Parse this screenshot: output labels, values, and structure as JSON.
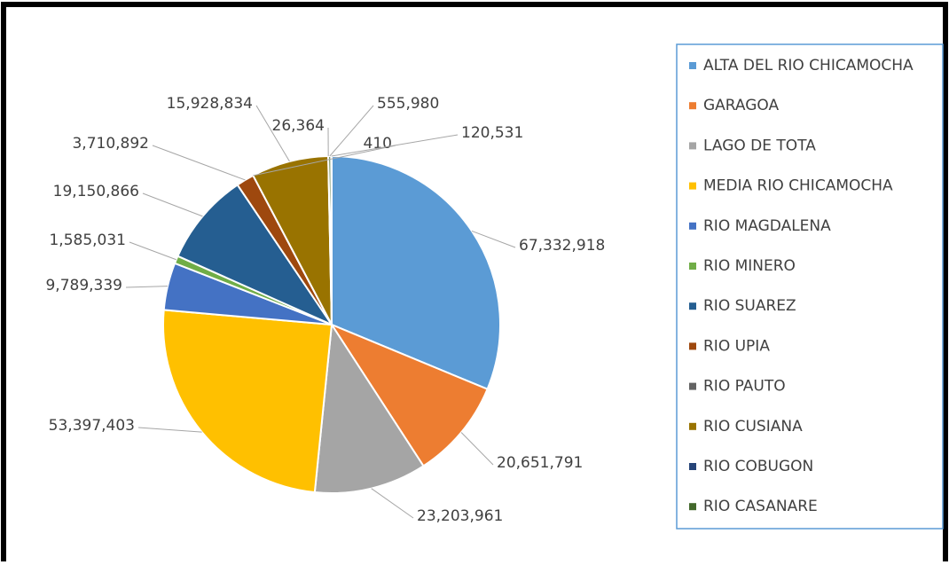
{
  "chart_data": {
    "type": "pie",
    "categories": [
      "ALTA DEL RIO CHICAMOCHA",
      "GARAGOA",
      "LAGO DE TOTA",
      "MEDIA RIO CHICAMOCHA",
      "RIO MAGDALENA",
      "RIO MINERO",
      "RIO SUAREZ",
      "RIO UPIA",
      "RIO PAUTO",
      "RIO CUSIANA",
      "RIO COBUGON",
      "RIO CASANARE",
      null
    ],
    "values": [
      67332918,
      20651791,
      23203961,
      53397403,
      9789339,
      1585031,
      19150866,
      3710892,
      410,
      15928834,
      26364,
      555980,
      120531
    ],
    "value_labels": [
      "67,332,918",
      "20,651,791",
      "23,203,961",
      "53,397,403",
      "9,789,339",
      "1,585,031",
      "19,150,866",
      "3,710,892",
      "410",
      "15,928,834",
      "26,364",
      "555,980",
      "120,531"
    ],
    "colors": [
      "#5b9bd5",
      "#ed7d31",
      "#a5a5a5",
      "#ffc000",
      "#4472c4",
      "#70ad47",
      "#255e91",
      "#9e480e",
      "#636363",
      "#997300",
      "#264478",
      "#43682b",
      "#7cafdd"
    ],
    "legend": "right"
  }
}
